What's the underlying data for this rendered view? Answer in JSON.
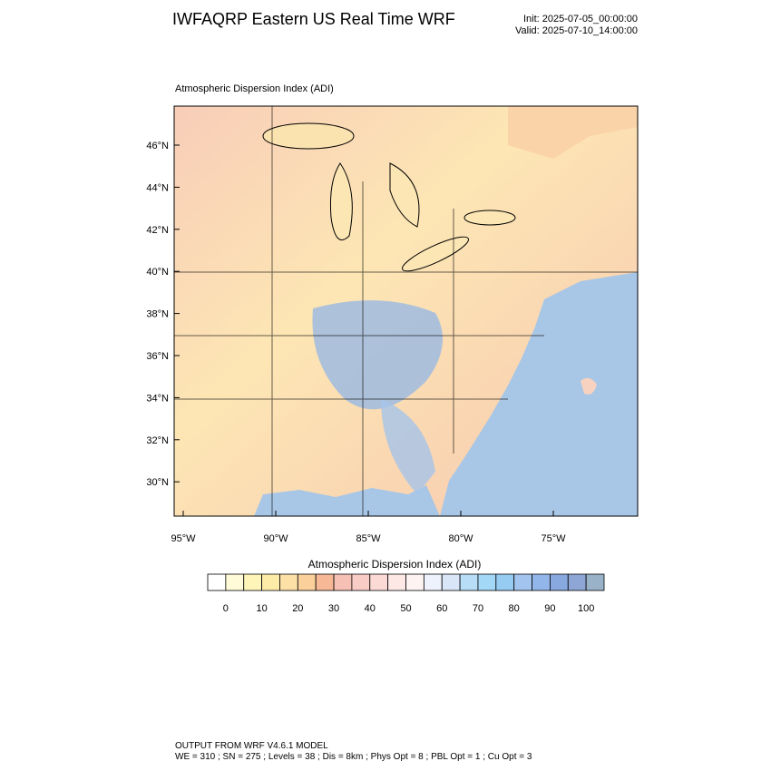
{
  "header": {
    "title": "IWFAQRP Eastern US Real Time WRF",
    "init": "Init: 2025-07-05_00:00:00",
    "valid": "Valid: 2025-07-10_14:00:00"
  },
  "map": {
    "title": "Atmospheric Dispersion Index   (ADI)",
    "lat_labels": [
      "46°N",
      "44°N",
      "42°N",
      "40°N",
      "38°N",
      "36°N",
      "34°N",
      "32°N",
      "30°N"
    ],
    "lon_labels": [
      "95°W",
      "90°W",
      "85°W",
      "80°W",
      "75°W"
    ]
  },
  "colorbar": {
    "title": "Atmospheric Dispersion Index  (ADI)",
    "colors": [
      "#ffffff",
      "#fffbd8",
      "#fff5b8",
      "#fdeca8",
      "#fde0a6",
      "#fbd09a",
      "#f7b896",
      "#f6c0b4",
      "#f9cdc6",
      "#fbdad6",
      "#fde8e6",
      "#fdf3f3",
      "#eef2fc",
      "#d8e6f8",
      "#b8def7",
      "#a4d8f7",
      "#96ccf2",
      "#a2c4ee",
      "#92b6ea",
      "#88a8e0",
      "#8ea6d6",
      "#9ab2c8"
    ],
    "ticks": [
      0,
      10,
      20,
      30,
      40,
      50,
      60,
      70,
      80,
      90,
      100
    ],
    "range": [
      -5,
      105
    ]
  },
  "footer": {
    "line1": "OUTPUT FROM WRF V4.6.1 MODEL",
    "line2": "WE = 310 ; SN = 275 ; Levels = 38 ; Dis = 8km ; Phys Opt = 8 ; PBL Opt = 1 ; Cu Opt = 3"
  }
}
